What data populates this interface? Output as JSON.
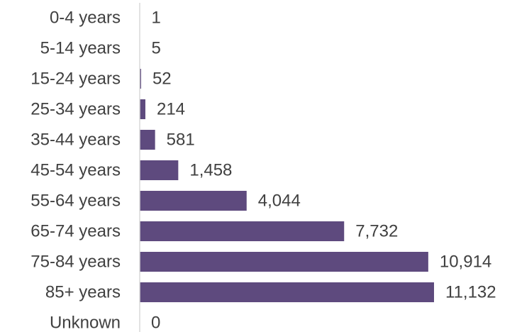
{
  "chart_data": {
    "type": "bar",
    "orientation": "horizontal",
    "categories": [
      "0-4 years",
      "5-14 years",
      "15-24 years",
      "25-34 years",
      "35-44 years",
      "45-54 years",
      "55-64 years",
      "65-74 years",
      "75-84 years",
      "85+ years",
      "Unknown"
    ],
    "values": [
      1,
      5,
      52,
      214,
      581,
      1458,
      4044,
      7732,
      10914,
      11132,
      0
    ],
    "value_labels": [
      "1",
      "5",
      "52",
      "214",
      "581",
      "1,458",
      "4,044",
      "7,732",
      "10,914",
      "11,132",
      "0"
    ],
    "title": "",
    "xlabel": "",
    "ylabel": "",
    "xlim": [
      0,
      11132
    ],
    "grid": false,
    "legend": "none",
    "bar_color": "#5e4a7e",
    "axis_color": "#d9d9d9",
    "text_color": "#404040"
  }
}
